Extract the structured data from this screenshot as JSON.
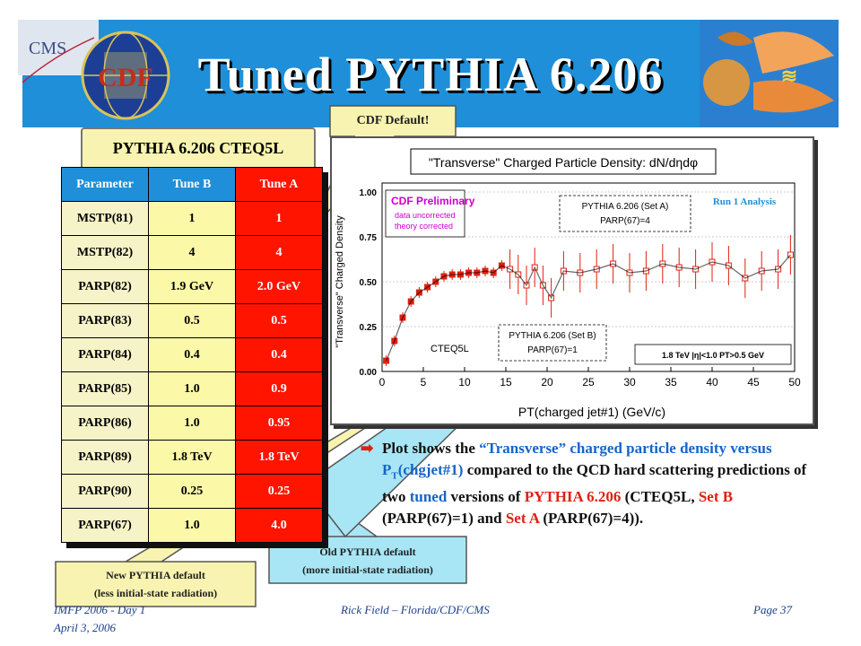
{
  "header": {
    "title": "Tuned PYTHIA 6.206",
    "logo_left": "cdf-cms-logo",
    "logo_right": "run-logo",
    "cms_text": "CMS",
    "cdf_text": "CDF"
  },
  "tag": {
    "label": "PYTHIA 6.206 CTEQ5L"
  },
  "callouts": {
    "cdf_default": "CDF Default!",
    "new_default_line1": "New PYTHIA default",
    "new_default_line2": "(less initial-state radiation)",
    "old_default_line1": "Old PYTHIA default",
    "old_default_line2": "(more initial-state radiation)"
  },
  "table": {
    "headers": [
      "Parameter",
      "Tune B",
      "Tune A"
    ],
    "rows": [
      [
        "MSTP(81)",
        "1",
        "1"
      ],
      [
        "MSTP(82)",
        "4",
        "4"
      ],
      [
        "PARP(82)",
        "1.9 GeV",
        "2.0 GeV"
      ],
      [
        "PARP(83)",
        "0.5",
        "0.5"
      ],
      [
        "PARP(84)",
        "0.4",
        "0.4"
      ],
      [
        "PARP(85)",
        "1.0",
        "0.9"
      ],
      [
        "PARP(86)",
        "1.0",
        "0.95"
      ],
      [
        "PARP(89)",
        "1.8 TeV",
        "1.8 TeV"
      ],
      [
        "PARP(90)",
        "0.25",
        "0.25"
      ],
      [
        "PARP(67)",
        "1.0",
        "4.0"
      ]
    ]
  },
  "plot": {
    "title": "\"Transverse\" Charged Particle Density: dN/dηdφ",
    "ylabel": "\"Transverse\" Charged Density",
    "xlabel": "PT(charged jet#1)  (GeV/c)",
    "run_label": "Run 1 Analysis",
    "cdf_prelim": "CDF Preliminary",
    "prelim_line1": "data uncorrected",
    "prelim_line2": "theory corrected",
    "setA_line1": "PYTHIA 6.206 (Set A)",
    "setA_line2": "PARP(67)=4",
    "setB_line1": "PYTHIA 6.206 (Set B)",
    "setB_line2": "PARP(67)=1",
    "cteq": "CTEQ5L",
    "cuts": "1.8 TeV |η|<1.0 PT>0.5 GeV",
    "yticks": [
      "0.00",
      "0.25",
      "0.50",
      "0.75",
      "1.00"
    ],
    "xticks": [
      "0",
      "5",
      "10",
      "15",
      "20",
      "25",
      "30",
      "35",
      "40",
      "45",
      "50"
    ]
  },
  "chart_data": {
    "type": "scatter",
    "xlim": [
      0,
      50
    ],
    "ylim": [
      0,
      1.05
    ],
    "series": [
      {
        "name": "CDF Preliminary",
        "x": [
          0.5,
          1.5,
          2.5,
          3.5,
          4.5,
          5.5,
          6.5,
          7.5,
          8.5,
          9.5,
          10.5,
          11.5,
          12.5,
          13.5,
          14.5,
          15.5,
          16.5,
          17.5,
          18.5,
          19.5,
          20.5,
          22,
          24,
          26,
          28,
          30,
          32,
          34,
          36,
          38,
          40,
          42,
          44,
          46,
          48,
          49.5
        ],
        "y": [
          0.06,
          0.17,
          0.3,
          0.39,
          0.44,
          0.47,
          0.5,
          0.53,
          0.54,
          0.54,
          0.55,
          0.55,
          0.56,
          0.55,
          0.59,
          0.57,
          0.54,
          0.48,
          0.58,
          0.48,
          0.41,
          0.56,
          0.55,
          0.57,
          0.6,
          0.55,
          0.56,
          0.6,
          0.58,
          0.57,
          0.61,
          0.59,
          0.52,
          0.56,
          0.57,
          0.65
        ]
      }
    ]
  },
  "description": {
    "p1": "Plot shows the ",
    "p2": "“Transverse” charged particle density versus P",
    "p2_sub": "T",
    "p3": "(chgjet#1)",
    "p4": " compared to the QCD hard scattering predictions of two ",
    "p5": "tuned",
    "p6": " versions of ",
    "p7": "PYTHIA 6.206",
    "p8": " (CTEQ5L, ",
    "p9": "Set B",
    "p10": " (PARP(67)=1) and ",
    "p11": "Set A",
    "p12": " (PARP(67)=4))."
  },
  "footer": {
    "left1": "IMFP 2006 - Day 1",
    "left2": "April 3, 2006",
    "center": "Rick Field – Florida/CDF/CMS",
    "right": "Page 37"
  },
  "colors": {
    "banner": "#1e8fd8",
    "tune_a": "#ff1400",
    "data_point": "#e02010"
  }
}
